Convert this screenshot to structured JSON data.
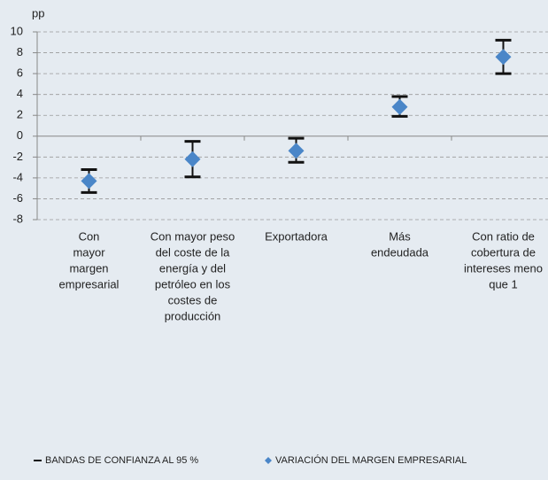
{
  "chart_data": {
    "type": "errorbar",
    "y_unit_label": "pp",
    "categories": [
      [
        "Con",
        "mayor",
        "margen",
        "empresarial"
      ],
      [
        "Con mayor peso",
        "del coste de la",
        "energía y del",
        "petróleo en los",
        "costes de",
        "producción"
      ],
      [
        "Exportadora"
      ],
      [
        "Más",
        "endeudada"
      ],
      [
        "Con ratio de",
        "cobertura de",
        "intereses meno",
        "que 1"
      ]
    ],
    "series": [
      {
        "name": "VARIACIÓN DEL MARGEN EMPRESARIAL",
        "color": "#4a86c8",
        "values": [
          -4.3,
          -2.2,
          -1.4,
          2.8,
          7.6
        ]
      }
    ],
    "error_bars": {
      "name": "BANDAS DE CONFIANZA AL 95 %",
      "color": "#111111",
      "lower": [
        -5.4,
        -3.9,
        -2.5,
        1.9,
        6.0
      ],
      "upper": [
        -3.2,
        -0.5,
        -0.2,
        3.8,
        9.2
      ]
    },
    "ylim": [
      -8,
      10
    ],
    "yticks": [
      -8,
      -6,
      -4,
      -2,
      0,
      2,
      4,
      6,
      8,
      10
    ],
    "grid": true
  }
}
